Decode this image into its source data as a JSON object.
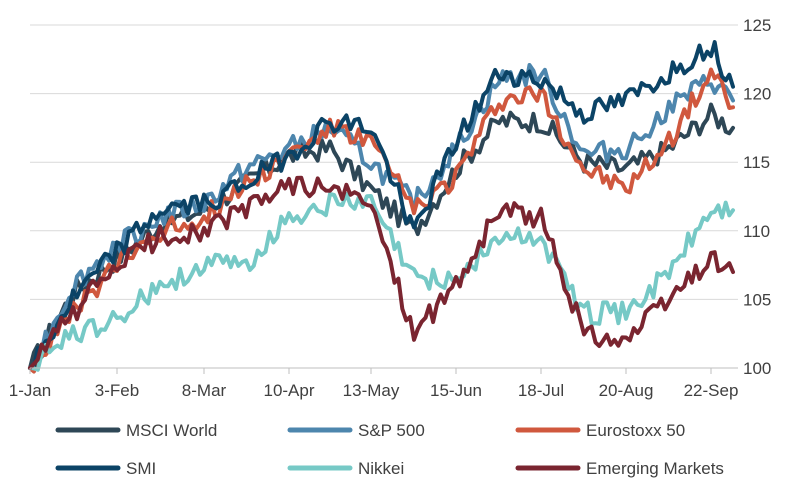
{
  "chart_data": {
    "type": "line",
    "title": "",
    "xlabel": "",
    "ylabel": "",
    "ylim": [
      100,
      125
    ],
    "y_ticks": [
      100,
      105,
      110,
      115,
      120,
      125
    ],
    "y_axis_side": "right",
    "grid": "horizontal",
    "legend_position": "bottom",
    "x_tick_labels": [
      "1-Jan",
      "3-Feb",
      "8-Mar",
      "10-Apr",
      "13-May",
      "15-Jun",
      "18-Jul",
      "20-Aug",
      "22-Sep"
    ],
    "x": [
      "1-Jan",
      "15-Jan",
      "3-Feb",
      "20-Feb",
      "8-Mar",
      "25-Mar",
      "10-Apr",
      "25-Apr",
      "13-May",
      "1-Jun",
      "15-Jun",
      "1-Jul",
      "18-Jul",
      "5-Aug",
      "20-Aug",
      "5-Sep",
      "22-Sep",
      "27-Sep"
    ],
    "series": [
      {
        "name": "MSCI World",
        "color": "#2E4756",
        "values": [
          100,
          105.5,
          108.0,
          110.5,
          111.5,
          113.5,
          115.5,
          116.0,
          113.0,
          110.0,
          114.5,
          118.0,
          118.0,
          115.0,
          114.5,
          116.0,
          118.5,
          117.5
        ]
      },
      {
        "name": "S&P 500",
        "color": "#4D86AD",
        "values": [
          100,
          106.0,
          109.0,
          111.0,
          112.0,
          114.5,
          116.0,
          117.5,
          115.0,
          112.0,
          116.0,
          121.0,
          121.5,
          115.5,
          116.0,
          119.0,
          121.0,
          119.5
        ]
      },
      {
        "name": "Eurostoxx 50",
        "color": "#D0583E",
        "values": [
          100,
          104.0,
          107.5,
          110.0,
          111.0,
          113.5,
          115.5,
          117.5,
          116.5,
          111.5,
          114.0,
          119.5,
          120.0,
          114.5,
          113.0,
          116.5,
          121.5,
          119.0
        ]
      },
      {
        "name": "SMI",
        "color": "#0B4366",
        "values": [
          100,
          105.0,
          108.5,
          111.5,
          112.0,
          113.5,
          115.5,
          118.0,
          117.5,
          110.0,
          116.5,
          121.5,
          121.0,
          118.5,
          119.5,
          121.5,
          123.5,
          120.5
        ]
      },
      {
        "name": "Nikkei",
        "color": "#76C9C6",
        "values": [
          100,
          102.5,
          103.5,
          106.0,
          107.5,
          107.5,
          111.0,
          112.0,
          112.0,
          106.5,
          106.5,
          109.5,
          109.5,
          104.0,
          104.0,
          107.0,
          111.5,
          111.5
        ]
      },
      {
        "name": "Emerging Markets",
        "color": "#7A2530",
        "values": [
          100,
          104.0,
          107.5,
          109.5,
          110.0,
          111.5,
          113.5,
          113.0,
          112.0,
          102.5,
          106.0,
          111.5,
          111.0,
          102.5,
          102.0,
          105.0,
          108.0,
          107.0
        ]
      }
    ]
  }
}
